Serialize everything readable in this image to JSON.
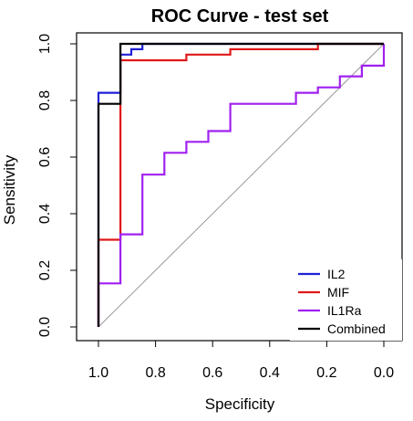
{
  "chart_data": {
    "type": "line",
    "title": "ROC Curve - test set",
    "xlabel": "Specificity",
    "ylabel": "Sensitivity",
    "xlim": [
      1.0,
      0.0
    ],
    "ylim": [
      0.0,
      1.0
    ],
    "x_reversed": true,
    "x_ticks": [
      1.0,
      0.8,
      0.6,
      0.4,
      0.2,
      0.0
    ],
    "x_tick_labels": [
      "1.0",
      "0.8",
      "0.6",
      "0.4",
      "0.2",
      "0.0"
    ],
    "y_ticks": [
      0.0,
      0.2,
      0.4,
      0.6,
      0.8,
      1.0
    ],
    "y_tick_labels": [
      "0.0",
      "0.2",
      "0.4",
      "0.6",
      "0.8",
      "1.0"
    ],
    "grid": false,
    "legend_position": "bottom-right",
    "reference_line": {
      "from": [
        1.0,
        0.0
      ],
      "to": [
        0.0,
        1.0
      ],
      "color": "#999999"
    },
    "series": [
      {
        "name": "IL2",
        "color": "#1f1fd8",
        "x": [
          1.0,
          1.0,
          1.0,
          0.923,
          0.923,
          0.885,
          0.885,
          0.846,
          0.846,
          0.0
        ],
        "y": [
          0.0,
          0.154,
          0.827,
          0.827,
          0.962,
          0.962,
          0.981,
          0.981,
          1.0,
          1.0
        ]
      },
      {
        "name": "MIF",
        "color": "#e01818",
        "x": [
          1.0,
          1.0,
          0.923,
          0.923,
          0.692,
          0.692,
          0.538,
          0.538,
          0.385,
          0.385,
          0.231,
          0.231,
          0.0
        ],
        "y": [
          0.0,
          0.308,
          0.308,
          0.942,
          0.942,
          0.962,
          0.962,
          0.981,
          0.981,
          0.981,
          0.981,
          1.0,
          1.0
        ]
      },
      {
        "name": "IL1Ra",
        "color": "#a020f0",
        "x": [
          1.0,
          1.0,
          0.923,
          0.923,
          0.846,
          0.846,
          0.769,
          0.769,
          0.692,
          0.692,
          0.615,
          0.615,
          0.538,
          0.538,
          0.385,
          0.385,
          0.308,
          0.308,
          0.231,
          0.231,
          0.154,
          0.154,
          0.077,
          0.077,
          0.0,
          0.0
        ],
        "y": [
          0.0,
          0.154,
          0.154,
          0.327,
          0.327,
          0.538,
          0.538,
          0.615,
          0.615,
          0.654,
          0.654,
          0.692,
          0.692,
          0.788,
          0.788,
          0.788,
          0.788,
          0.827,
          0.827,
          0.846,
          0.846,
          0.885,
          0.885,
          0.923,
          0.923,
          1.0
        ]
      },
      {
        "name": "Combined",
        "color": "#000000",
        "x": [
          1.0,
          1.0,
          1.0,
          0.923,
          0.923,
          0.692,
          0.692,
          0.0
        ],
        "y": [
          0.0,
          0.154,
          0.788,
          0.788,
          1.0,
          1.0,
          1.0,
          1.0
        ]
      }
    ]
  }
}
